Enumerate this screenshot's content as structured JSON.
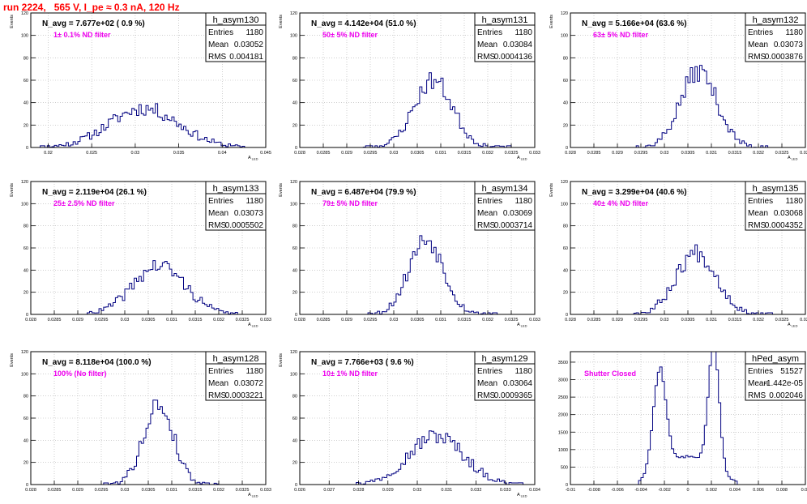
{
  "canvas_title": "run 2224,   565 V, I_pe ≈ 0.3 nA, 120 Hz",
  "colors": {
    "title": "#ff0000",
    "hist": "#000080",
    "annotation": "#ee00ee",
    "grid": "#b0b0b0"
  },
  "chart_data": [
    {
      "type": "bar",
      "name": "h_asym130",
      "stats": {
        "entries": "1180",
        "mean": "0.03052",
        "rms": "0.004181"
      },
      "navg_text": "N_avg = 7.677e+02 ( 0.9 %)",
      "annotation": "1± 0.1% ND filter",
      "ylabel": "Events",
      "xlabel": "A_LED",
      "xlim": [
        0.018,
        0.045
      ],
      "ylim": [
        0,
        120
      ],
      "xticks": [
        "0.02",
        "0.025",
        "0.03",
        "0.035",
        "0.04",
        "0.045"
      ],
      "xtick_values": [
        0.02,
        0.025,
        0.03,
        0.035,
        0.04,
        0.045
      ],
      "yticks": [
        "0",
        "20",
        "40",
        "60",
        "80",
        "100",
        "120"
      ],
      "center": 0.031,
      "sigma": 0.004,
      "peak": 35,
      "range": [
        0.0185,
        0.0425
      ],
      "nbins": 100,
      "seed": 11
    },
    {
      "type": "bar",
      "name": "h_asym131",
      "stats": {
        "entries": "1180",
        "mean": "0.03084",
        "rms": "0.0004136"
      },
      "navg_text": "N_avg = 4.142e+04 (51.0 %)",
      "annotation": "50± 5% ND filter",
      "ylabel": "Events",
      "xlabel": "A_LED",
      "xlim": [
        0.028,
        0.033
      ],
      "ylim": [
        0,
        120
      ],
      "xticks": [
        "0.028",
        "0.0285",
        "0.029",
        "0.0295",
        "0.03",
        "0.0305",
        "0.031",
        "0.0315",
        "0.032",
        "0.0325",
        "0.033"
      ],
      "xtick_values": [
        0.028,
        0.0285,
        0.029,
        0.0295,
        0.03,
        0.0305,
        0.031,
        0.0315,
        0.032,
        0.0325,
        0.033
      ],
      "yticks": [
        "0",
        "20",
        "40",
        "60",
        "80",
        "100",
        "120"
      ],
      "center": 0.03084,
      "sigma": 0.00041,
      "peak": 60,
      "range": [
        0.0293,
        0.0325
      ],
      "nbins": 100,
      "seed": 23
    },
    {
      "type": "bar",
      "name": "h_asym132",
      "stats": {
        "entries": "1180",
        "mean": "0.03073",
        "rms": "0.0003876"
      },
      "navg_text": "N_avg = 5.166e+04 (63.6 %)",
      "annotation": "63± 5% ND filter",
      "ylabel": "Events",
      "xlabel": "A_LED",
      "xlim": [
        0.028,
        0.033
      ],
      "ylim": [
        0,
        120
      ],
      "xticks": [
        "0.028",
        "0.0285",
        "0.029",
        "0.0295",
        "0.03",
        "0.0305",
        "0.031",
        "0.0315",
        "0.032",
        "0.0325",
        "0.033"
      ],
      "xtick_values": [
        0.028,
        0.0285,
        0.029,
        0.0295,
        0.03,
        0.0305,
        0.031,
        0.0315,
        0.032,
        0.0325,
        0.033
      ],
      "yticks": [
        "0",
        "20",
        "40",
        "60",
        "80",
        "100",
        "120"
      ],
      "center": 0.03073,
      "sigma": 0.00039,
      "peak": 68,
      "range": [
        0.0294,
        0.0322
      ],
      "nbins": 100,
      "seed": 37
    },
    {
      "type": "bar",
      "name": "h_asym133",
      "stats": {
        "entries": "1180",
        "mean": "0.03073",
        "rms": "0.0005502"
      },
      "navg_text": "N_avg = 2.119e+04 (26.1 %)",
      "annotation": "25± 2.5% ND filter",
      "ylabel": "Events",
      "xlabel": "A_LED",
      "xlim": [
        0.028,
        0.033
      ],
      "ylim": [
        0,
        120
      ],
      "xticks": [
        "0.028",
        "0.0285",
        "0.029",
        "0.0295",
        "0.03",
        "0.0305",
        "0.031",
        "0.0315",
        "0.032",
        "0.0325",
        "0.033"
      ],
      "xtick_values": [
        0.028,
        0.0285,
        0.029,
        0.0295,
        0.03,
        0.0305,
        0.031,
        0.0315,
        0.032,
        0.0325,
        0.033
      ],
      "yticks": [
        "0",
        "20",
        "40",
        "60",
        "80",
        "100",
        "120"
      ],
      "center": 0.03073,
      "sigma": 0.00055,
      "peak": 44,
      "range": [
        0.0292,
        0.0324
      ],
      "nbins": 100,
      "seed": 41
    },
    {
      "type": "bar",
      "name": "h_asym134",
      "stats": {
        "entries": "1180",
        "mean": "0.03069",
        "rms": "0.0003714"
      },
      "navg_text": "N_avg = 6.487e+04 (79.9 %)",
      "annotation": "79± 5% ND filter",
      "ylabel": "Events",
      "xlabel": "A_LED",
      "xlim": [
        0.028,
        0.033
      ],
      "ylim": [
        0,
        120
      ],
      "xticks": [
        "0.028",
        "0.0285",
        "0.029",
        "0.0295",
        "0.03",
        "0.0305",
        "0.031",
        "0.0315",
        "0.032",
        "0.0325",
        "0.033"
      ],
      "xtick_values": [
        0.028,
        0.0285,
        0.029,
        0.0295,
        0.03,
        0.0305,
        0.031,
        0.0315,
        0.032,
        0.0325,
        0.033
      ],
      "yticks": [
        "0",
        "20",
        "40",
        "60",
        "80",
        "100",
        "120"
      ],
      "center": 0.03069,
      "sigma": 0.00037,
      "peak": 68,
      "range": [
        0.0294,
        0.0322
      ],
      "nbins": 100,
      "seed": 53
    },
    {
      "type": "bar",
      "name": "h_asym135",
      "stats": {
        "entries": "1180",
        "mean": "0.03068",
        "rms": "0.0004352"
      },
      "navg_text": "N_avg = 3.299e+04 (40.6 %)",
      "annotation": "40± 4% ND filter",
      "ylabel": "Events",
      "xlabel": "A_LED",
      "xlim": [
        0.028,
        0.033
      ],
      "ylim": [
        0,
        120
      ],
      "xticks": [
        "0.028",
        "0.0285",
        "0.029",
        "0.0295",
        "0.03",
        "0.0305",
        "0.031",
        "0.0315",
        "0.032",
        "0.0325",
        "0.033"
      ],
      "xtick_values": [
        0.028,
        0.0285,
        0.029,
        0.0295,
        0.03,
        0.0305,
        0.031,
        0.0315,
        0.032,
        0.0325,
        0.033
      ],
      "yticks": [
        "0",
        "20",
        "40",
        "60",
        "80",
        "100",
        "120"
      ],
      "center": 0.03068,
      "sigma": 0.00043,
      "peak": 56,
      "range": [
        0.0293,
        0.0323
      ],
      "nbins": 100,
      "seed": 67
    },
    {
      "type": "bar",
      "name": "h_asym128",
      "stats": {
        "entries": "1180",
        "mean": "0.03072",
        "rms": "0.0003221"
      },
      "navg_text": "N_avg = 8.118e+04 (100.0 %)",
      "annotation": "100% (No filter)",
      "ylabel": "Events",
      "xlabel": "A_LED",
      "xlim": [
        0.028,
        0.033
      ],
      "ylim": [
        0,
        120
      ],
      "xticks": [
        "0.028",
        "0.0285",
        "0.029",
        "0.0295",
        "0.03",
        "0.0305",
        "0.031",
        "0.0315",
        "0.032",
        "0.0325",
        "0.033"
      ],
      "xtick_values": [
        0.028,
        0.0285,
        0.029,
        0.0295,
        0.03,
        0.0305,
        0.031,
        0.0315,
        0.032,
        0.0325,
        0.033
      ],
      "yticks": [
        "0",
        "20",
        "40",
        "60",
        "80",
        "100",
        "120"
      ],
      "center": 0.03072,
      "sigma": 0.00032,
      "peak": 72,
      "range": [
        0.0295,
        0.032
      ],
      "nbins": 100,
      "seed": 79
    },
    {
      "type": "bar",
      "name": "h_asym129",
      "stats": {
        "entries": "1180",
        "mean": "0.03064",
        "rms": "0.0009365"
      },
      "navg_text": "N_avg = 7.766e+03 ( 9.6 %)",
      "annotation": "10± 1% ND filter",
      "ylabel": "Events",
      "xlabel": "A_LED",
      "xlim": [
        0.026,
        0.034
      ],
      "ylim": [
        0,
        120
      ],
      "xticks": [
        "0.026",
        "0.027",
        "0.028",
        "0.029",
        "0.03",
        "0.031",
        "0.032",
        "0.033",
        "0.034"
      ],
      "xtick_values": [
        0.026,
        0.027,
        0.028,
        0.029,
        0.03,
        0.031,
        0.032,
        0.033,
        0.034
      ],
      "yticks": [
        "0",
        "20",
        "40",
        "60",
        "80",
        "100",
        "120"
      ],
      "center": 0.03064,
      "sigma": 0.00094,
      "peak": 44,
      "range": [
        0.0276,
        0.0336
      ],
      "nbins": 100,
      "seed": 97
    },
    {
      "type": "bar",
      "name": "hPed_asym",
      "stats": {
        "entries": "51527",
        "mean": "-1.442e-05",
        "rms": "0.002046"
      },
      "navg_text": "",
      "annotation": "Shutter Closed",
      "ylabel": "",
      "xlabel": "",
      "xlim": [
        -0.01,
        0.01
      ],
      "ylim": [
        0,
        3800
      ],
      "xticks": [
        "-0.01",
        "-0.008",
        "-0.006",
        "-0.004",
        "-0.002",
        "0",
        "0.002",
        "0.004",
        "0.006",
        "0.008",
        "0.01"
      ],
      "xtick_values": [
        -0.01,
        -0.008,
        -0.006,
        -0.004,
        -0.002,
        0,
        0.002,
        0.004,
        0.006,
        0.008,
        0.01
      ],
      "yticks": [
        "0",
        "500",
        "1000",
        "1500",
        "2000",
        "2500",
        "3000",
        "3500"
      ],
      "ytick_values": [
        0,
        500,
        1000,
        1500,
        2000,
        2500,
        3000,
        3500
      ],
      "double_peak": [
        -0.0024,
        0.0022
      ],
      "peak_heights": [
        2950,
        3650
      ],
      "valley": 800,
      "range": [
        -0.0042,
        0.0042
      ],
      "nbins": 100,
      "seed": 5
    }
  ]
}
